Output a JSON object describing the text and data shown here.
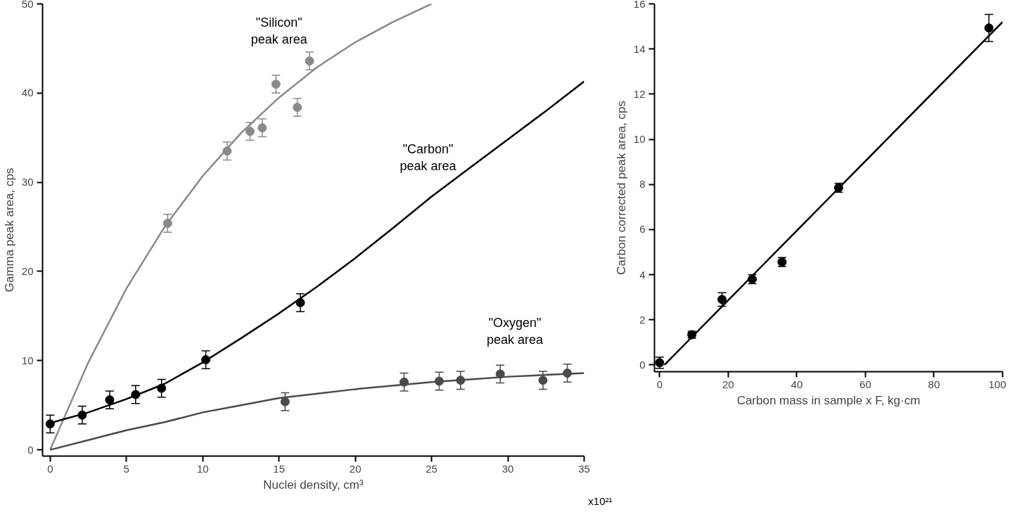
{
  "chart_data": [
    {
      "type": "scatter",
      "marker": "circle",
      "xlabel": "Nuclei density, cm³",
      "ylabel": "Gamma peak area, cps",
      "xlim": [
        -0.5,
        35
      ],
      "ylim": [
        -0.7,
        50
      ],
      "xticks": [
        0,
        5,
        10,
        15,
        20,
        25,
        30,
        35
      ],
      "yticks": [
        0,
        10,
        20,
        30,
        40,
        50
      ],
      "annotations": [
        "x10²¹"
      ],
      "series": [
        {
          "color": "#8a8a8a",
          "x": [
            7.7,
            11.6,
            13.1,
            13.9,
            14.8,
            16.2,
            17.0
          ],
          "values": [
            25.4,
            33.5,
            35.7,
            36.1,
            41.0,
            38.4,
            43.6
          ],
          "errors": [
            1.0,
            1.0,
            1.0,
            1.0,
            1.0,
            1.0,
            1.0
          ]
        },
        {
          "type": "line",
          "name": "\"Silicon\"\npeak area",
          "marker": "none",
          "color": "#8a8a8a",
          "line_style": "solid",
          "x": [
            0,
            2.5,
            5,
            7.5,
            10,
            12.5,
            15,
            17.5,
            20,
            22.5,
            25
          ],
          "values": [
            0,
            9.8,
            18.1,
            25.0,
            30.7,
            35.5,
            39.5,
            42.9,
            45.7,
            48.0,
            50
          ]
        },
        {
          "color": "#000000",
          "x": [
            0,
            2.1,
            3.9,
            5.6,
            7.3,
            10.2,
            16.4
          ],
          "values": [
            2.9,
            3.9,
            5.6,
            6.2,
            6.9,
            10.1,
            16.5
          ],
          "errors": [
            1.0,
            1.0,
            1.0,
            1.0,
            1.0,
            1.0,
            1.0
          ]
        },
        {
          "type": "line",
          "name": "\"Carbon\"\npeak area",
          "marker": "none",
          "color": "#000000",
          "line_style": "solid",
          "x": [
            0,
            2.5,
            5,
            7.5,
            10,
            12.5,
            15,
            17.5,
            20,
            22.5,
            25,
            27.5,
            30,
            32.5,
            35
          ],
          "values": [
            3.0,
            4.2,
            5.7,
            7.4,
            9.8,
            12.5,
            15.3,
            18.3,
            21.5,
            24.9,
            28.4,
            31.6,
            34.8,
            38.0,
            41.3
          ]
        },
        {
          "color": "#4a4a4a",
          "x": [
            15.4,
            23.2,
            25.5,
            26.9,
            29.5,
            32.3,
            33.9
          ],
          "values": [
            5.4,
            7.6,
            7.7,
            7.8,
            8.5,
            7.8,
            8.6
          ],
          "errors": [
            1.0,
            1.0,
            1.0,
            1.0,
            1.0,
            1.0,
            1.0
          ]
        },
        {
          "type": "line",
          "name": "\"Oxygen\"\npeak area",
          "marker": "none",
          "color": "#4a4a4a",
          "line_style": "solid",
          "x": [
            0,
            2.5,
            5,
            7.5,
            10,
            12.5,
            15,
            17.5,
            20,
            22.5,
            25,
            27.5,
            30,
            32.5,
            35
          ],
          "values": [
            0,
            1.1,
            2.2,
            3.1,
            4.2,
            5.0,
            5.8,
            6.3,
            6.8,
            7.2,
            7.6,
            7.9,
            8.2,
            8.4,
            8.6
          ]
        }
      ]
    },
    {
      "type": "scatter",
      "marker": "circle",
      "xlabel": "Carbon mass in sample x F, kg·cm",
      "ylabel": "Carbon corrected peak area, cps",
      "xlim": [
        -1.5,
        100
      ],
      "ylim": [
        -0.3,
        16
      ],
      "xticks": [
        0,
        20,
        40,
        60,
        80,
        100
      ],
      "yticks": [
        0,
        2,
        4,
        6,
        8,
        10,
        12,
        14,
        16
      ],
      "series": [
        {
          "color": "#000000",
          "x": [
            0,
            9.4,
            18.2,
            27.0,
            35.7,
            52.2,
            96.0
          ],
          "values": [
            0.1,
            1.34,
            2.9,
            3.8,
            4.56,
            7.85,
            14.93
          ],
          "errors": [
            0.25,
            0.15,
            0.3,
            0.2,
            0.2,
            0.2,
            0.6
          ]
        },
        {
          "type": "line",
          "marker": "none",
          "color": "#000000",
          "line_style": "solid",
          "x": [
            1.4,
            100
          ],
          "values": [
            0,
            15.2
          ]
        }
      ]
    }
  ]
}
